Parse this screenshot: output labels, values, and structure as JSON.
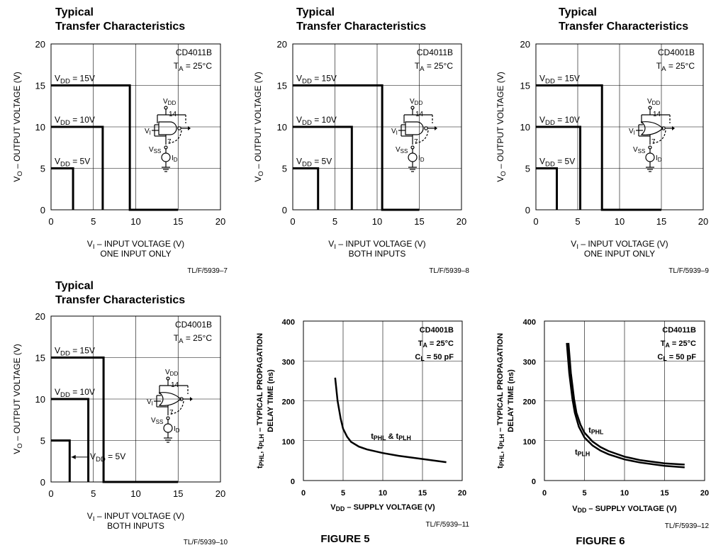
{
  "chart_data": [
    {
      "type": "line",
      "title": "Typical\nTransfer Characteristics",
      "annotations": [
        "CD4011B",
        "T_A = 25°C"
      ],
      "xlabel": "V_I – INPUT VOLTAGE (V)",
      "xlabel2": "ONE INPUT ONLY",
      "ylabel": "V_O – OUTPUT VOLTAGE (V)",
      "xlim": [
        0,
        20
      ],
      "ylim": [
        0,
        20
      ],
      "xticks": [
        0,
        5,
        10,
        15,
        20
      ],
      "yticks": [
        0,
        5,
        10,
        15,
        20
      ],
      "grid": true,
      "series": [
        {
          "name": "V_DD = 15V",
          "x": [
            0,
            9.3,
            9.3,
            15
          ],
          "y": [
            15,
            15,
            0,
            0
          ]
        },
        {
          "name": "V_DD = 10V",
          "x": [
            0,
            6.1,
            6.1
          ],
          "y": [
            10,
            10,
            0
          ]
        },
        {
          "name": "V_DD = 5V",
          "x": [
            0,
            2.6,
            2.6
          ],
          "y": [
            5,
            5,
            0
          ]
        }
      ],
      "ref": "TL/F/5939–7",
      "circuit": "nand"
    },
    {
      "type": "line",
      "title": "Typical\nTransfer Characteristics",
      "annotations": [
        "CD4011B",
        "T_A = 25°C"
      ],
      "xlabel": "V_I – INPUT VOLTAGE (V)",
      "xlabel2": "BOTH INPUTS",
      "ylabel": "V_O – OUTPUT VOLTAGE (V)",
      "xlim": [
        0,
        20
      ],
      "ylim": [
        0,
        20
      ],
      "xticks": [
        0,
        5,
        10,
        15,
        20
      ],
      "yticks": [
        0,
        5,
        10,
        15,
        20
      ],
      "grid": true,
      "series": [
        {
          "name": "V_DD = 15V",
          "x": [
            0,
            10.6,
            10.6,
            15
          ],
          "y": [
            15,
            15,
            0,
            0
          ]
        },
        {
          "name": "V_DD = 10V",
          "x": [
            0,
            7,
            7
          ],
          "y": [
            10,
            10,
            0
          ]
        },
        {
          "name": "V_DD = 5V",
          "x": [
            0,
            3,
            3
          ],
          "y": [
            5,
            5,
            0
          ]
        }
      ],
      "ref": "TL/F/5939–8",
      "circuit": "nand"
    },
    {
      "type": "line",
      "title": "Typical\nTransfer Characteristics",
      "annotations": [
        "CD4001B",
        "T_A = 25°C"
      ],
      "xlabel": "V_I – INPUT VOLTAGE (V)",
      "xlabel2": "ONE INPUT ONLY",
      "ylabel": "V_O – OUTPUT VOLTAGE (V)",
      "xlim": [
        0,
        20
      ],
      "ylim": [
        0,
        20
      ],
      "xticks": [
        0,
        5,
        10,
        15,
        20
      ],
      "yticks": [
        0,
        5,
        10,
        15,
        20
      ],
      "grid": true,
      "series": [
        {
          "name": "V_DD = 15V",
          "x": [
            0,
            7.9,
            7.9,
            15
          ],
          "y": [
            15,
            15,
            0,
            0
          ]
        },
        {
          "name": "V_DD = 10V",
          "x": [
            0,
            5.3,
            5.3
          ],
          "y": [
            10,
            10,
            0
          ]
        },
        {
          "name": "V_DD = 5V",
          "x": [
            0,
            2.5,
            2.5
          ],
          "y": [
            5,
            5,
            0
          ]
        }
      ],
      "ref": "TL/F/5939–9",
      "circuit": "nor"
    },
    {
      "type": "line",
      "title": "Typical\nTransfer Characteristics",
      "annotations": [
        "CD4001B",
        "T_A = 25°C"
      ],
      "xlabel": "V_I – INPUT VOLTAGE (V)",
      "xlabel2": "BOTH INPUTS",
      "ylabel": "V_O – OUTPUT VOLTAGE (V)",
      "xlim": [
        0,
        20
      ],
      "ylim": [
        0,
        20
      ],
      "xticks": [
        0,
        5,
        10,
        15,
        20
      ],
      "yticks": [
        0,
        5,
        10,
        15,
        20
      ],
      "grid": true,
      "series": [
        {
          "name": "V_DD = 15V",
          "x": [
            0,
            6.2,
            6.2,
            15
          ],
          "y": [
            15,
            15,
            0,
            0
          ]
        },
        {
          "name": "V_DD = 10V",
          "x": [
            0,
            4.4,
            4.4
          ],
          "y": [
            10,
            10,
            0
          ]
        },
        {
          "name": "V_DD = 5V",
          "x": [
            0,
            2.2,
            2.2
          ],
          "y": [
            5,
            5,
            0
          ]
        }
      ],
      "vdd5_callout": "V_DD = 5V",
      "ref": "TL/F/5939–10",
      "circuit": "nor"
    },
    {
      "type": "line",
      "title": "",
      "annotations": [
        "CD4001B",
        "T_A = 25°C",
        "C_L = 50 pF"
      ],
      "xlabel": "V_DD – SUPPLY VOLTAGE (V)",
      "ylabel": "t_PHL, t_PLH – TYPICAL PROPAGATION",
      "ylabel2": "DELAY TIME (ns)",
      "xlim": [
        0,
        20
      ],
      "ylim": [
        0,
        400
      ],
      "xticks": [
        0,
        5,
        10,
        15,
        20
      ],
      "yticks": [
        0,
        100,
        200,
        300,
        400
      ],
      "grid": true,
      "series": [
        {
          "name": "t_PHL & t_PLH",
          "x": [
            4,
            4.3,
            4.7,
            5,
            5.5,
            6,
            7,
            8,
            10,
            12,
            15,
            18
          ],
          "y": [
            258,
            200,
            155,
            130,
            110,
            97,
            85,
            78,
            69,
            62,
            54,
            46
          ]
        }
      ],
      "ref": "TL/F/5939–11",
      "figure": "FIGURE 5"
    },
    {
      "type": "line",
      "title": "",
      "annotations": [
        "CD4011B",
        "T_A = 25°C",
        "C_L = 50 pF"
      ],
      "xlabel": "V_DD – SUPPLY VOLTAGE (V)",
      "ylabel": "t_PHL, t_PLH – TYPICAL PROPAGATION",
      "ylabel2": "DELAY TIME (ns)",
      "xlim": [
        0,
        20
      ],
      "ylim": [
        0,
        400
      ],
      "xticks": [
        0,
        5,
        10,
        15,
        20
      ],
      "yticks": [
        0,
        100,
        200,
        300,
        400
      ],
      "grid": true,
      "series": [
        {
          "name": "t_PHL",
          "x": [
            3,
            3.3,
            3.7,
            4,
            4.5,
            5,
            6,
            7,
            8,
            10,
            12,
            15,
            17.5
          ],
          "y": [
            345,
            270,
            205,
            170,
            140,
            120,
            98,
            84,
            74,
            60,
            51,
            43,
            40
          ]
        },
        {
          "name": "t_PLH",
          "x": [
            2.8,
            3.1,
            3.5,
            3.8,
            4.3,
            5,
            6,
            7,
            8,
            10,
            12,
            15,
            17.5
          ],
          "y": [
            345,
            270,
            205,
            170,
            135,
            108,
            88,
            75,
            66,
            53,
            45,
            37,
            33
          ]
        }
      ],
      "ref": "TL/F/5939–12",
      "figure": "FIGURE 6"
    }
  ]
}
